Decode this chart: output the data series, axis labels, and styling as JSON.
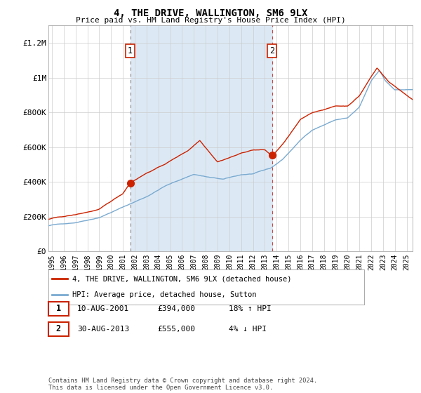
{
  "title": "4, THE DRIVE, WALLINGTON, SM6 9LX",
  "subtitle": "Price paid vs. HM Land Registry's House Price Index (HPI)",
  "legend_line1": "4, THE DRIVE, WALLINGTON, SM6 9LX (detached house)",
  "legend_line2": "HPI: Average price, detached house, Sutton",
  "annotation1_label": "1",
  "annotation1_date": "10-AUG-2001",
  "annotation1_price": "£394,000",
  "annotation1_hpi": "18% ↑ HPI",
  "annotation1_year": 2001.62,
  "annotation1_value": 394000,
  "annotation2_label": "2",
  "annotation2_date": "30-AUG-2013",
  "annotation2_price": "£555,000",
  "annotation2_hpi": "4% ↓ HPI",
  "annotation2_year": 2013.62,
  "annotation2_value": 555000,
  "ylabel_ticks": [
    "£0",
    "£200K",
    "£400K",
    "£600K",
    "£800K",
    "£1M",
    "£1.2M"
  ],
  "ytick_values": [
    0,
    200000,
    400000,
    600000,
    800000,
    1000000,
    1200000
  ],
  "ylim": [
    0,
    1300000
  ],
  "xlim_start": 1994.7,
  "xlim_end": 2025.5,
  "hpi_color": "#7aaad0",
  "price_color": "#cc2200",
  "marker_color": "#cc2200",
  "bg_color": "#dce9f5",
  "plot_bg": "#ffffff",
  "grid_color": "#cccccc",
  "shade_start": 2001.62,
  "shade_end": 2013.62,
  "copyright_text": "Contains HM Land Registry data © Crown copyright and database right 2024.\nThis data is licensed under the Open Government Licence v3.0.",
  "xtick_years": [
    1995,
    1996,
    1997,
    1998,
    1999,
    2000,
    2001,
    2002,
    2003,
    2004,
    2005,
    2006,
    2007,
    2008,
    2009,
    2010,
    2011,
    2012,
    2013,
    2014,
    2015,
    2016,
    2017,
    2018,
    2019,
    2020,
    2021,
    2022,
    2023,
    2024,
    2025
  ],
  "dashed1_color": "#888888",
  "dashed2_color": "#cc4444"
}
